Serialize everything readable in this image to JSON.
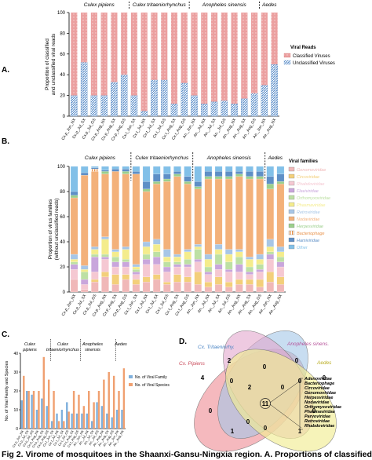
{
  "panel_labels": [
    "A.",
    "B.",
    "C.",
    "D."
  ],
  "caption": "Fig 2. Virome of mosquitoes in the Shaanxi-Gansu-Ningxia region. A. Proportions of classified",
  "colors": {
    "classified": "#e89898",
    "unclassified": "#5b8ec9",
    "venn_pipiens": "#f2a2a8",
    "venn_tritaenio": "#a3c7e8",
    "venn_sinensis": "#e3a7cd",
    "venn_aedes": "#f1ec93"
  },
  "chart_data": [
    {
      "type": "bar",
      "stacked": true,
      "groups": [
        "Culex pipiens",
        "Culex tritaeniorhynchus",
        "Anopheles sinensis",
        "Aedes"
      ],
      "categories": [
        "Cx.p_Jun_NX",
        "Cx.p_Jul_SX",
        "Cx.p_Jul_GS",
        "Cx.p_Aug_NX",
        "Cx.p_Aug_SX",
        "Cx.p_Aug_GS",
        "Cx.t_Jun_SX",
        "Cx.t_Jul_NX",
        "Cx.t_Jul_SX",
        "Cx.t_Jul_GS",
        "Cx.t_Aug_SX",
        "Cx.t_Aug_GS",
        "An._Jun_NX",
        "An._Jul_NX",
        "An._Jul_SX",
        "An._Jul_GS",
        "An._Aug_NX",
        "An._Aug_SX",
        "An._Aug_GS",
        "Ae._Jun_NX",
        "Ae._Aug_NX"
      ],
      "series": [
        {
          "name": "Unclassified Viruses",
          "values": [
            20,
            52,
            20,
            20,
            33,
            40,
            20,
            5,
            35,
            35,
            12,
            32,
            20,
            12,
            14,
            15,
            12,
            17,
            22,
            30,
            50
          ]
        },
        {
          "name": "Classified Viruses",
          "values": [
            80,
            48,
            80,
            80,
            67,
            60,
            80,
            95,
            65,
            65,
            88,
            68,
            80,
            88,
            86,
            85,
            88,
            83,
            78,
            70,
            50
          ]
        }
      ],
      "ylabel": "Proportion of classified\nand unclassified viral reads",
      "ylim": [
        0,
        100
      ],
      "yticks": [
        0,
        20,
        40,
        60,
        80,
        100
      ],
      "legend_title": "Viral Reads"
    },
    {
      "type": "bar",
      "stacked": true,
      "groups": [
        "Culex pipiens",
        "Culex tritaeniorhynchus",
        "Anopheles sinensis",
        "Aedes"
      ],
      "categories": [
        "Cx.p_Jun_NX",
        "Cx.p_Jul_SX",
        "Cx.p_Jul_GS",
        "Cx.p_Aug_NX",
        "Cx.p_Aug_SX",
        "Cx.p_Aug_GS",
        "Cx.t_Jun_SX",
        "Cx.t_Jul_NX",
        "Cx.t_Jul_SX",
        "Cx.t_Jul_GS",
        "Cx.t_Aug_SX",
        "Cx.t_Aug_GS",
        "An._Jun_NX",
        "An._Jul_NX",
        "An._Jul_SX",
        "An._Jul_GS",
        "An._Aug_NX",
        "An._Aug_SX",
        "An._Aug_GS",
        "Ae._Jun_NX",
        "Ae._Aug_NX"
      ],
      "families": [
        {
          "name": "Genomoviridae",
          "color": "#f0b8b8"
        },
        {
          "name": "Circoviridae",
          "color": "#f3cf7a"
        },
        {
          "name": "Rhabdoviridae",
          "color": "#f5c8d2"
        },
        {
          "name": "Flaviviridae",
          "color": "#c9a6dc"
        },
        {
          "name": "Orthomyxoviridae",
          "color": "#bde0a4"
        },
        {
          "name": "Phasmaviridae",
          "color": "#f4ec8c"
        },
        {
          "name": "Retroviridae",
          "color": "#a7c6e6"
        },
        {
          "name": "Nodaviridae",
          "color": "#f3b17a"
        },
        {
          "name": "Herpesviridae",
          "color": "#9ccf8c"
        },
        {
          "name": "Bacteriophage",
          "color": "#e9924a"
        },
        {
          "name": "Hamiviridae",
          "color": "#5e8fc6"
        },
        {
          "name": "Other",
          "color": "#82c0e8"
        }
      ],
      "bars": [
        [
          10,
          0,
          8,
          4,
          2,
          2,
          4,
          45,
          2,
          0,
          3,
          20
        ],
        [
          2,
          0,
          4,
          4,
          6,
          2,
          3,
          72,
          0,
          0,
          2,
          5
        ],
        [
          8,
          2,
          6,
          12,
          2,
          4,
          2,
          60,
          0,
          2,
          1,
          1
        ],
        [
          12,
          4,
          10,
          2,
          2,
          12,
          2,
          50,
          2,
          0,
          1,
          3
        ],
        [
          6,
          8,
          6,
          4,
          4,
          4,
          2,
          62,
          0,
          0,
          2,
          2
        ],
        [
          10,
          4,
          6,
          4,
          2,
          8,
          2,
          58,
          2,
          0,
          2,
          2
        ],
        [
          6,
          4,
          4,
          2,
          2,
          2,
          2,
          72,
          0,
          0,
          2,
          4
        ],
        [
          8,
          4,
          10,
          4,
          4,
          6,
          4,
          40,
          2,
          0,
          6,
          12
        ],
        [
          10,
          4,
          8,
          6,
          4,
          6,
          4,
          44,
          2,
          0,
          6,
          6
        ],
        [
          6,
          2,
          8,
          4,
          4,
          4,
          6,
          54,
          2,
          0,
          4,
          6
        ],
        [
          8,
          6,
          6,
          2,
          2,
          4,
          2,
          62,
          2,
          0,
          2,
          4
        ],
        [
          8,
          4,
          8,
          2,
          4,
          6,
          2,
          52,
          2,
          0,
          4,
          8
        ],
        [
          6,
          10,
          8,
          2,
          8,
          2,
          2,
          44,
          2,
          0,
          4,
          12
        ],
        [
          4,
          4,
          6,
          2,
          4,
          6,
          4,
          60,
          2,
          0,
          4,
          4
        ],
        [
          6,
          6,
          6,
          4,
          8,
          4,
          4,
          52,
          2,
          0,
          4,
          4
        ],
        [
          4,
          4,
          8,
          2,
          6,
          6,
          4,
          56,
          2,
          0,
          4,
          4
        ],
        [
          6,
          4,
          6,
          6,
          6,
          4,
          2,
          58,
          2,
          0,
          2,
          4
        ],
        [
          6,
          4,
          4,
          2,
          4,
          6,
          2,
          62,
          2,
          0,
          4,
          4
        ],
        [
          4,
          6,
          6,
          2,
          4,
          4,
          4,
          60,
          2,
          0,
          4,
          4
        ],
        [
          8,
          8,
          10,
          4,
          2,
          4,
          6,
          40,
          4,
          0,
          6,
          8
        ],
        [
          6,
          6,
          8,
          4,
          4,
          4,
          4,
          50,
          2,
          0,
          6,
          6
        ]
      ],
      "ylabel": "Proportion of virus families\n(without unclassified reads)",
      "ylim": [
        0,
        100
      ],
      "yticks": [
        0,
        20,
        40,
        60,
        80,
        100
      ],
      "legend_title": "Viral families"
    },
    {
      "type": "bar",
      "groups": [
        "Culex pipiens",
        "Culex tritaeniorhynchus",
        "Anopheles sinensis",
        "Aedes"
      ],
      "categories": [
        "Cx.p_Jun_NX",
        "Cx.p_Jul_SX",
        "Cx.p_Jul_GS",
        "Cx.p_Aug_NX",
        "Cx.p_Aug_SX",
        "Cx.p_Aug_GS",
        "Cx.t_Jun_SX",
        "Cx.t_Jul_NX",
        "Cx.t_Jul_SX",
        "Cx.t_Jul_GS",
        "Cx.t_Aug_SX",
        "Cx.t_Aug_GS",
        "An._Jun_NX",
        "An._Jul_NX",
        "An._Jul_SX",
        "An._Jul_GS",
        "An._Aug_NX",
        "An._Aug_SX",
        "An._Aug_GS",
        "Ae._Jun_NX",
        "Ae._Aug_NX"
      ],
      "series": [
        {
          "name": "No. of Viral Family",
          "values": [
            15,
            20,
            18,
            10,
            16,
            12,
            4,
            8,
            10,
            14,
            8,
            8,
            8,
            8,
            4,
            14,
            12,
            8,
            6,
            10,
            10
          ]
        },
        {
          "name": "No. of Viral Species",
          "values": [
            28,
            20,
            20,
            20,
            38,
            26,
            20,
            4,
            4,
            9,
            20,
            18,
            12,
            20,
            14,
            20,
            26,
            30,
            28,
            20,
            32
          ]
        }
      ],
      "ylabel": "No. of Viral Family and Species",
      "ylim": [
        0,
        40
      ],
      "yticks": [
        0,
        10,
        20,
        30,
        40
      ]
    }
  ],
  "panelC_groups": [
    {
      "line1": "Culex",
      "line2": "pipiens"
    },
    {
      "line1": "Culex",
      "line2": "tritaeniorhynchus"
    },
    {
      "line1": "Anopheles",
      "line2": "sinensis"
    },
    {
      "line1": "Aedes",
      "line2": ""
    }
  ],
  "venn": {
    "sets": [
      "Cx. Tritaeniorhy.",
      "Anopheles sinens.",
      "Cx. Pipiens",
      "Aedes"
    ],
    "counts": {
      "tritaenio_only": "2",
      "sinensis_only": "0",
      "pipiens_only": "4",
      "aedes_only": "0",
      "trit_sin": "0",
      "pip_trit": "0",
      "sin_aedes": "0",
      "pip_trit_sin": "2",
      "trit_sin_aedes": "0",
      "center": "11",
      "pip_sin": "0",
      "trit_aedes": "0",
      "pip_trit_aedes": "0",
      "bottom_left": "1",
      "bottom_right": "1",
      "bottom": "0"
    },
    "center_families": [
      "Adenoviridae",
      "Bacteriophage",
      "Circoviridae",
      "Genomoviridae",
      "Herpesviridae",
      "Nodaviridae",
      "Orthomyxoviridae",
      "Phasmaviridae",
      "Parvoviridae",
      "Retroviridae",
      "Rhabdoviridae"
    ]
  }
}
